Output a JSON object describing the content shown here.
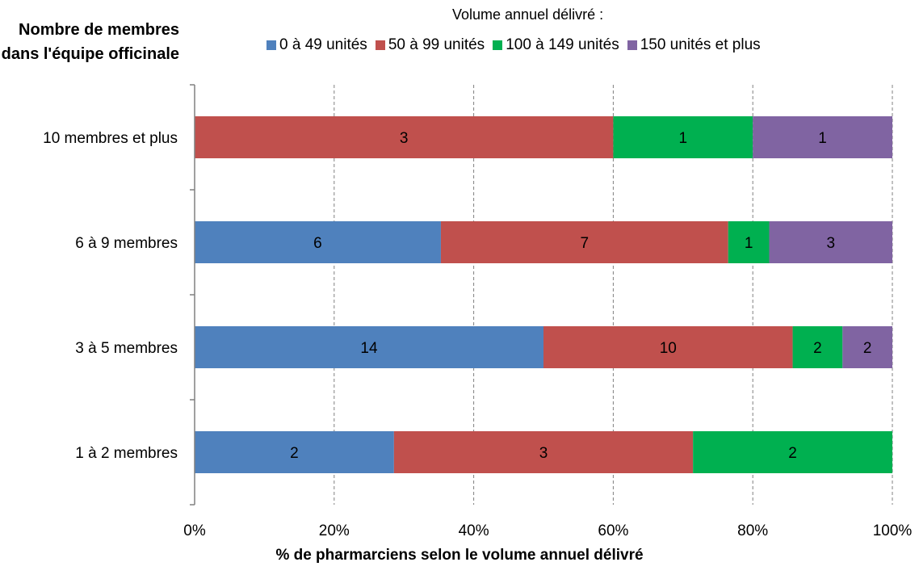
{
  "chart_data": {
    "type": "bar",
    "orientation": "horizontal",
    "stacked": "percent",
    "categories": [
      "10 membres et plus",
      "6 à 9 membres",
      "3 à 5 membres",
      "1 à 2 membres"
    ],
    "series": [
      {
        "name": "0 à 49 unités",
        "color": "#4f81bd",
        "values": [
          0,
          6,
          14,
          2
        ]
      },
      {
        "name": "50 à 99 unités",
        "color": "#c0504d",
        "values": [
          3,
          7,
          10,
          3
        ]
      },
      {
        "name": "100 à 149 unités",
        "color": "#00b050",
        "values": [
          1,
          1,
          2,
          2
        ]
      },
      {
        "name": "150 unités et plus",
        "color": "#8064a2",
        "values": [
          1,
          3,
          2,
          0
        ]
      }
    ],
    "x_ticks": [
      "0%",
      "20%",
      "40%",
      "60%",
      "80%",
      "100%"
    ],
    "xlim": [
      0,
      100
    ],
    "grid": "vertical dashed",
    "xlabel": "% de pharmarciens selon le volume annuel délivré",
    "ylabel": "Nombre de membres dans l'équipe officinale",
    "legend_title": "Volume annuel délivré :",
    "legend_position": "top"
  }
}
